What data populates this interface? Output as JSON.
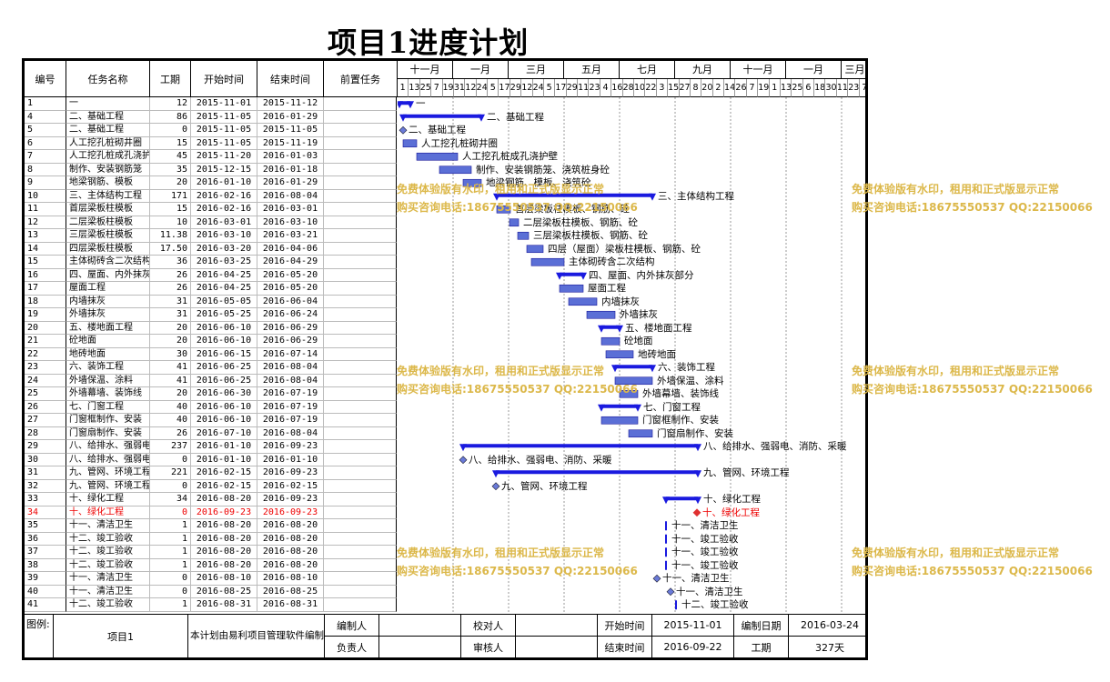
{
  "title": "项目1进度计划",
  "headers": {
    "id": "编号",
    "name": "任务名称",
    "dur": "工期",
    "start": "开始时间",
    "end": "结束时间",
    "pre": "前置任务"
  },
  "months": [
    "十一月",
    "一月",
    "三月",
    "五月",
    "七月",
    "九月",
    "十一月",
    "一月",
    "三月"
  ],
  "days": [
    "1",
    "13",
    "25",
    "7",
    "19",
    "31",
    "12",
    "24",
    "5",
    "17",
    "29",
    "12",
    "24",
    "5",
    "17",
    "29",
    "11",
    "23",
    "4",
    "16",
    "28",
    "10",
    "22",
    "3",
    "15",
    "27",
    "8",
    "20",
    "2",
    "14",
    "26",
    "7",
    "19",
    "1",
    "13",
    "25",
    "6",
    "18",
    "30",
    "11",
    "23",
    "7"
  ],
  "rows": [
    {
      "id": "1",
      "name": "一",
      "dur": "12",
      "start": "2015-11-01",
      "end": "2015-11-12",
      "label": "一"
    },
    {
      "id": "4",
      "name": "二、基础工程",
      "dur": "86",
      "start": "2015-11-05",
      "end": "2016-01-29",
      "label": "二、基础工程"
    },
    {
      "id": "5",
      "name": "二、基础工程",
      "dur": "0",
      "start": "2015-11-05",
      "end": "2015-11-05",
      "label": "二、基础工程"
    },
    {
      "id": "6",
      "name": "人工挖孔桩砌井圈",
      "dur": "15",
      "start": "2015-11-05",
      "end": "2015-11-19",
      "label": "人工挖孔桩砌井圈"
    },
    {
      "id": "7",
      "name": "人工挖孔桩成孔浇护壁",
      "dur": "45",
      "start": "2015-11-20",
      "end": "2016-01-03",
      "label": "人工挖孔桩成孔浇护壁"
    },
    {
      "id": "8",
      "name": "制作、安装钢筋笼",
      "dur": "35",
      "start": "2015-12-15",
      "end": "2016-01-18",
      "label": "制作、安装钢筋笼、浇筑桩身砼"
    },
    {
      "id": "9",
      "name": "地梁钢筋、模板",
      "dur": "20",
      "start": "2016-01-10",
      "end": "2016-01-29",
      "label": "地梁钢筋、模板、浇筑砼"
    },
    {
      "id": "10",
      "name": "三、主体结构工程",
      "dur": "171",
      "start": "2016-02-16",
      "end": "2016-08-04",
      "label": "三、主体结构工程"
    },
    {
      "id": "11",
      "name": "首层梁板柱模板",
      "dur": "15",
      "start": "2016-02-16",
      "end": "2016-03-01",
      "label": "首层梁板柱模板、钢筋、砼"
    },
    {
      "id": "12",
      "name": "二层梁板柱模板",
      "dur": "10",
      "start": "2016-03-01",
      "end": "2016-03-10",
      "label": "二层梁板柱模板、钢筋、砼"
    },
    {
      "id": "13",
      "name": "三层梁板柱模板",
      "dur": "11.38",
      "start": "2016-03-10",
      "end": "2016-03-21",
      "label": "三层梁板柱模板、钢筋、砼"
    },
    {
      "id": "14",
      "name": "四层梁板柱模板",
      "dur": "17.50",
      "start": "2016-03-20",
      "end": "2016-04-06",
      "label": "四层（屋面）梁板柱模板、钢筋、砼"
    },
    {
      "id": "15",
      "name": "主体砌砖含二次结构",
      "dur": "36",
      "start": "2016-03-25",
      "end": "2016-04-29",
      "label": "主体砌砖含二次结构"
    },
    {
      "id": "16",
      "name": "四、屋面、内外抹灰部分",
      "dur": "26",
      "start": "2016-04-25",
      "end": "2016-05-20",
      "label": "四、屋面、内外抹灰部分"
    },
    {
      "id": "17",
      "name": "屋面工程",
      "dur": "26",
      "start": "2016-04-25",
      "end": "2016-05-20",
      "label": "屋面工程"
    },
    {
      "id": "18",
      "name": "内墙抹灰",
      "dur": "31",
      "start": "2016-05-05",
      "end": "2016-06-04",
      "label": "内墙抹灰"
    },
    {
      "id": "19",
      "name": "外墙抹灰",
      "dur": "31",
      "start": "2016-05-25",
      "end": "2016-06-24",
      "label": "外墙抹灰"
    },
    {
      "id": "20",
      "name": "五、楼地面工程",
      "dur": "20",
      "start": "2016-06-10",
      "end": "2016-06-29",
      "label": "五、楼地面工程"
    },
    {
      "id": "21",
      "name": "砼地面",
      "dur": "20",
      "start": "2016-06-10",
      "end": "2016-06-29",
      "label": "砼地面"
    },
    {
      "id": "22",
      "name": "地砖地面",
      "dur": "30",
      "start": "2016-06-15",
      "end": "2016-07-14",
      "label": "地砖地面"
    },
    {
      "id": "23",
      "name": "六、装饰工程",
      "dur": "41",
      "start": "2016-06-25",
      "end": "2016-08-04",
      "label": "六、装饰工程"
    },
    {
      "id": "24",
      "name": "外墙保温、涂料",
      "dur": "41",
      "start": "2016-06-25",
      "end": "2016-08-04",
      "label": "外墙保温、涂料"
    },
    {
      "id": "25",
      "name": "外墙幕墙、装饰线",
      "dur": "20",
      "start": "2016-06-30",
      "end": "2016-07-19",
      "label": "外墙幕墙、装饰线"
    },
    {
      "id": "26",
      "name": "七、门窗工程",
      "dur": "40",
      "start": "2016-06-10",
      "end": "2016-07-19",
      "label": "七、门窗工程"
    },
    {
      "id": "27",
      "name": "门窗框制作、安装",
      "dur": "40",
      "start": "2016-06-10",
      "end": "2016-07-19",
      "label": "门窗框制作、安装"
    },
    {
      "id": "28",
      "name": "门窗扇制作、安装",
      "dur": "26",
      "start": "2016-07-10",
      "end": "2016-08-04",
      "label": "门窗扇制作、安装"
    },
    {
      "id": "29",
      "name": "八、给排水、强弱电、消防、采暖",
      "dur": "237",
      "start": "2016-01-10",
      "end": "2016-09-23",
      "label": "八、给排水、强弱电、消防、采暖"
    },
    {
      "id": "30",
      "name": "八、给排水、强弱电、消防、采暖",
      "dur": "0",
      "start": "2016-01-10",
      "end": "2016-01-10",
      "label": "八、给排水、强弱电、消防、采暖"
    },
    {
      "id": "31",
      "name": "九、管网、环境工程",
      "dur": "221",
      "start": "2016-02-15",
      "end": "2016-09-23",
      "label": "九、管网、环境工程"
    },
    {
      "id": "32",
      "name": "九、管网、环境工程",
      "dur": "0",
      "start": "2016-02-15",
      "end": "2016-02-15",
      "label": "九、管网、环境工程"
    },
    {
      "id": "33",
      "name": "十、绿化工程",
      "dur": "34",
      "start": "2016-08-20",
      "end": "2016-09-23",
      "label": "十、绿化工程"
    },
    {
      "id": "34",
      "name": "十、绿化工程",
      "dur": "0",
      "start": "2016-09-23",
      "end": "2016-09-23",
      "label": "十、绿化工程",
      "red": true
    },
    {
      "id": "35",
      "name": "十一、清洁卫生",
      "dur": "1",
      "start": "2016-08-20",
      "end": "2016-08-20",
      "label": "十一、清洁卫生"
    },
    {
      "id": "36",
      "name": "十二、竣工验收",
      "dur": "1",
      "start": "2016-08-20",
      "end": "2016-08-20",
      "label": "十一、竣工验收"
    },
    {
      "id": "37",
      "name": "十二、竣工验收",
      "dur": "1",
      "start": "2016-08-20",
      "end": "2016-08-20",
      "label": "十一、竣工验收"
    },
    {
      "id": "38",
      "name": "十二、竣工验收",
      "dur": "1",
      "start": "2016-08-20",
      "end": "2016-08-20",
      "label": "十一、竣工验收"
    },
    {
      "id": "39",
      "name": "十一、清洁卫生",
      "dur": "0",
      "start": "2016-08-10",
      "end": "2016-08-10",
      "label": "十一、清洁卫生"
    },
    {
      "id": "40",
      "name": "十一、清洁卫生",
      "dur": "0",
      "start": "2016-08-25",
      "end": "2016-08-25",
      "label": "十一、清洁卫生"
    },
    {
      "id": "41",
      "name": "十二、竣工验收",
      "dur": "1",
      "start": "2016-08-31",
      "end": "2016-08-31",
      "label": "十二、竣工验收"
    }
  ],
  "footer": {
    "legend_label": "图例:",
    "project": "项目1",
    "note": "本计划由易利项目管理软件编制",
    "author_label": "编制人",
    "reviewer_label": "校对人",
    "start_label": "开始时间",
    "start_value": "2015-11-01",
    "date_label": "编制日期",
    "date_value": "2016-03-24",
    "owner_label": "负责人",
    "approver_label": "审核人",
    "end_label": "结束时间",
    "end_value": "2016-09-22",
    "duration_label": "工期",
    "duration_value": "327天"
  },
  "watermark": {
    "line1": "免费体验版有水印，租用和正式版显示正常",
    "line2": "购买咨询电话:18675550537 QQ:22150066"
  },
  "colors": {
    "bar": "#1a1adf",
    "task_fill": "#5b6fd6",
    "watermark": "#dcb84a",
    "milestone_red": "#e03030"
  }
}
